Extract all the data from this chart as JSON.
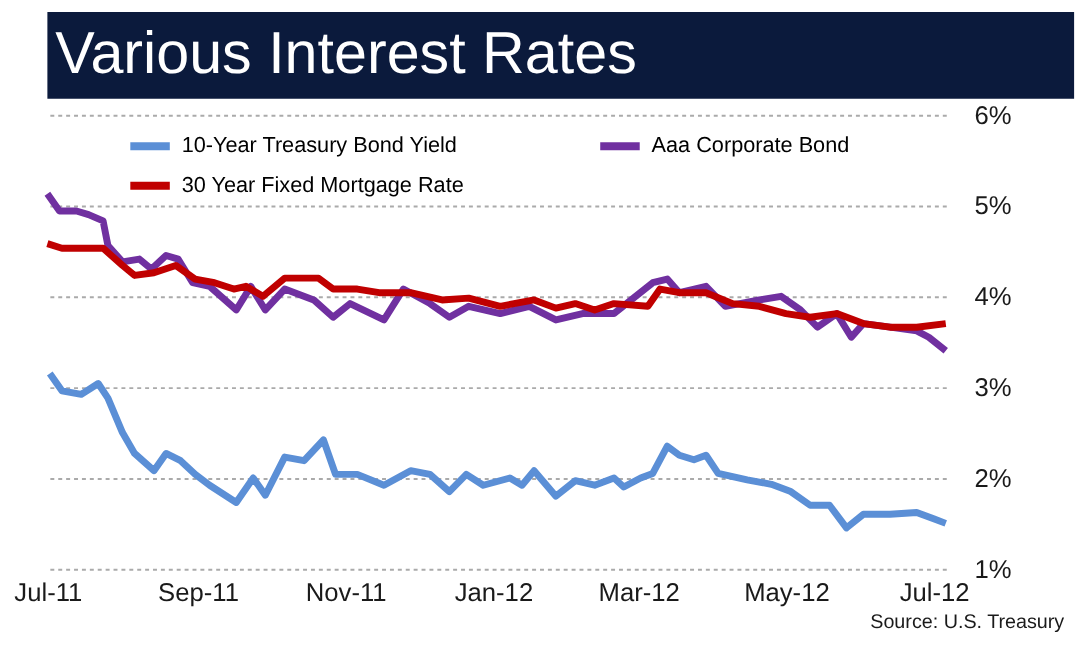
{
  "chart_data": {
    "type": "line",
    "title": "Various Interest Rates",
    "annotations": [
      "Source:  U.S. Treasury"
    ],
    "xlim": [
      "2011-07-01",
      "2012-07-06"
    ],
    "xticks": [
      {
        "value": "2011-07-01",
        "label": "Jul-11"
      },
      {
        "value": "2011-09-01",
        "label": "Sep-11"
      },
      {
        "value": "2011-11-01",
        "label": "Nov-11"
      },
      {
        "value": "2012-01-01",
        "label": "Jan-12"
      },
      {
        "value": "2012-03-01",
        "label": "Mar-12"
      },
      {
        "value": "2012-05-01",
        "label": "May-12"
      },
      {
        "value": "2012-07-01",
        "label": "Jul-12"
      }
    ],
    "ylim": [
      1,
      6
    ],
    "yticks": [
      {
        "value": 1,
        "label": "1%"
      },
      {
        "value": 2,
        "label": "2%"
      },
      {
        "value": 3,
        "label": "3%"
      },
      {
        "value": 4,
        "label": "4%"
      },
      {
        "value": 5,
        "label": "5%"
      },
      {
        "value": 6,
        "label": "6%"
      }
    ],
    "grid": "y",
    "legend": "top",
    "marker": "none",
    "line_style": "solid",
    "series": [
      {
        "name": "10-Year Treasury Bond Yield",
        "color": "#5b8fd6",
        "x": [
          "2011-07-02",
          "2011-07-07",
          "2011-07-15",
          "2011-07-22",
          "2011-07-26",
          "2011-08-01",
          "2011-08-06",
          "2011-08-14",
          "2011-08-19",
          "2011-08-25",
          "2011-08-31",
          "2011-09-06",
          "2011-09-17",
          "2011-09-24",
          "2011-09-29",
          "2011-10-07",
          "2011-10-15",
          "2011-10-23",
          "2011-10-28",
          "2011-11-06",
          "2011-11-17",
          "2011-11-28",
          "2011-12-06",
          "2011-12-14",
          "2011-12-21",
          "2011-12-28",
          "2012-01-08",
          "2012-01-13",
          "2012-01-18",
          "2012-01-27",
          "2012-02-04",
          "2012-02-12",
          "2012-02-20",
          "2012-02-24",
          "2012-03-02",
          "2012-03-07",
          "2012-03-13",
          "2012-03-18",
          "2012-03-24",
          "2012-03-29",
          "2012-04-03",
          "2012-04-15",
          "2012-04-25",
          "2012-05-03",
          "2012-05-11",
          "2012-05-19",
          "2012-05-26",
          "2012-06-02",
          "2012-06-13",
          "2012-06-24",
          "2012-07-01",
          "2012-07-06"
        ],
        "values": [
          3.15,
          2.96,
          2.92,
          3.04,
          2.88,
          2.5,
          2.27,
          2.08,
          2.27,
          2.19,
          2.04,
          1.92,
          1.73,
          2.0,
          1.81,
          2.23,
          2.19,
          2.42,
          2.04,
          2.04,
          1.92,
          2.08,
          2.04,
          1.85,
          2.04,
          1.92,
          2.0,
          1.92,
          2.08,
          1.8,
          1.97,
          1.92,
          2.0,
          1.9,
          2.0,
          2.05,
          2.35,
          2.25,
          2.2,
          2.25,
          2.05,
          1.98,
          1.93,
          1.85,
          1.7,
          1.7,
          1.45,
          1.6,
          1.6,
          1.62,
          1.55,
          1.5
        ]
      },
      {
        "name": "Aaa Corporate Bond",
        "color": "#7030a0",
        "x": [
          "2011-07-01",
          "2011-07-06",
          "2011-07-13",
          "2011-07-18",
          "2011-07-24",
          "2011-07-26",
          "2011-08-01",
          "2011-08-08",
          "2011-08-13",
          "2011-08-19",
          "2011-08-24",
          "2011-08-30",
          "2011-09-06",
          "2011-09-17",
          "2011-09-23",
          "2011-09-29",
          "2011-10-07",
          "2011-10-19",
          "2011-10-27",
          "2011-11-03",
          "2011-11-17",
          "2011-11-25",
          "2011-12-06",
          "2011-12-14",
          "2011-12-22",
          "2012-01-04",
          "2012-01-16",
          "2012-01-27",
          "2012-02-07",
          "2012-02-20",
          "2012-03-07",
          "2012-03-13",
          "2012-03-18",
          "2012-03-29",
          "2012-04-06",
          "2012-04-20",
          "2012-04-29",
          "2012-05-07",
          "2012-05-14",
          "2012-05-22",
          "2012-05-28",
          "2012-06-02",
          "2012-06-13",
          "2012-06-24",
          "2012-06-29",
          "2012-07-06"
        ],
        "values": [
          5.13,
          4.94,
          4.94,
          4.9,
          4.83,
          4.56,
          4.38,
          4.41,
          4.3,
          4.45,
          4.41,
          4.15,
          4.11,
          3.85,
          4.11,
          3.85,
          4.08,
          3.96,
          3.77,
          3.92,
          3.74,
          4.08,
          3.92,
          3.77,
          3.89,
          3.81,
          3.89,
          3.74,
          3.81,
          3.81,
          4.15,
          4.19,
          4.04,
          4.11,
          3.89,
          3.96,
          4.0,
          3.85,
          3.66,
          3.81,
          3.55,
          3.7,
          3.66,
          3.62,
          3.55,
          3.4
        ]
      },
      {
        "name": "30 Year Fixed Mortgage Rate",
        "color": "#c00000",
        "x": [
          "2011-07-01",
          "2011-07-07",
          "2011-07-24",
          "2011-08-01",
          "2011-08-06",
          "2011-08-14",
          "2011-08-23",
          "2011-08-31",
          "2011-09-08",
          "2011-09-16",
          "2011-09-21",
          "2011-09-28",
          "2011-10-07",
          "2011-10-21",
          "2011-10-27",
          "2011-11-06",
          "2011-11-15",
          "2011-11-28",
          "2011-12-11",
          "2011-12-22",
          "2012-01-04",
          "2012-01-18",
          "2012-01-27",
          "2012-02-04",
          "2012-02-12",
          "2012-02-20",
          "2012-03-05",
          "2012-03-10",
          "2012-03-18",
          "2012-03-29",
          "2012-04-09",
          "2012-04-20",
          "2012-05-01",
          "2012-05-11",
          "2012-05-22",
          "2012-06-02",
          "2012-06-13",
          "2012-06-24",
          "2012-07-06"
        ],
        "values": [
          4.58,
          4.53,
          4.53,
          4.34,
          4.23,
          4.26,
          4.34,
          4.19,
          4.15,
          4.08,
          4.11,
          4.0,
          4.2,
          4.2,
          4.08,
          4.08,
          4.04,
          4.04,
          3.96,
          3.98,
          3.89,
          3.96,
          3.87,
          3.92,
          3.85,
          3.92,
          3.89,
          4.08,
          4.04,
          4.04,
          3.92,
          3.89,
          3.81,
          3.77,
          3.81,
          3.7,
          3.66,
          3.66,
          3.7
        ]
      }
    ]
  }
}
